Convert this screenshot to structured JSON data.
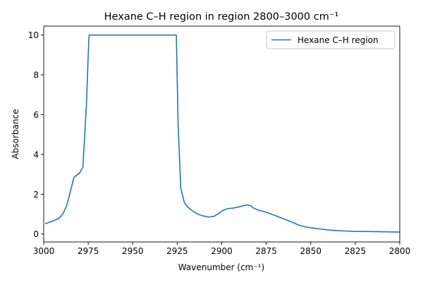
{
  "chart_data": {
    "type": "line",
    "title": "Hexane C–H region in region 2800–3000 cm⁻¹",
    "xlabel": "Wavenumber (cm⁻¹)",
    "ylabel": "Absorbance",
    "xlim": [
      3000,
      2800
    ],
    "ylim": [
      -0.4,
      10.45
    ],
    "x_inverted": true,
    "x_ticks": [
      3000,
      2975,
      2950,
      2925,
      2900,
      2875,
      2850,
      2825,
      2800
    ],
    "x_tick_labels": [
      "3000",
      "2975",
      "2950",
      "2925",
      "2900",
      "2875",
      "2850",
      "2825",
      "2800"
    ],
    "y_ticks": [
      0,
      2,
      4,
      6,
      8,
      10
    ],
    "y_tick_labels": [
      "0",
      "2",
      "4",
      "6",
      "8",
      "10"
    ],
    "grid": false,
    "legend_position": "upper right",
    "series": [
      {
        "name": "Hexane C–H region",
        "color": "#1f77b4",
        "x": [
          2999,
          2996,
          2993,
          2991,
          2989,
          2987,
          2985,
          2983,
          2980,
          2978,
          2976,
          2975,
          2974.5,
          2973.5,
          2970,
          2960,
          2950,
          2940,
          2930,
          2925.5,
          2924.5,
          2923,
          2921,
          2919,
          2917,
          2915,
          2913,
          2910,
          2907,
          2904,
          2902,
          2900,
          2898,
          2896,
          2894,
          2892,
          2890,
          2888,
          2886,
          2884,
          2882,
          2880,
          2878,
          2876,
          2872,
          2868,
          2864,
          2860,
          2856,
          2852,
          2848,
          2845,
          2840,
          2835,
          2830,
          2825,
          2815,
          2800
        ],
        "y": [
          0.52,
          0.62,
          0.72,
          0.82,
          1.05,
          1.45,
          2.15,
          2.85,
          3.05,
          3.35,
          6.5,
          9.0,
          10.0,
          10.0,
          10.0,
          10.0,
          10.0,
          10.0,
          10.0,
          10.0,
          5.5,
          2.3,
          1.58,
          1.35,
          1.2,
          1.08,
          0.98,
          0.9,
          0.85,
          0.9,
          1.02,
          1.15,
          1.24,
          1.28,
          1.3,
          1.33,
          1.37,
          1.42,
          1.46,
          1.44,
          1.3,
          1.22,
          1.17,
          1.12,
          1.0,
          0.86,
          0.72,
          0.58,
          0.42,
          0.34,
          0.29,
          0.26,
          0.2,
          0.17,
          0.15,
          0.13,
          0.12,
          0.1
        ]
      }
    ]
  }
}
